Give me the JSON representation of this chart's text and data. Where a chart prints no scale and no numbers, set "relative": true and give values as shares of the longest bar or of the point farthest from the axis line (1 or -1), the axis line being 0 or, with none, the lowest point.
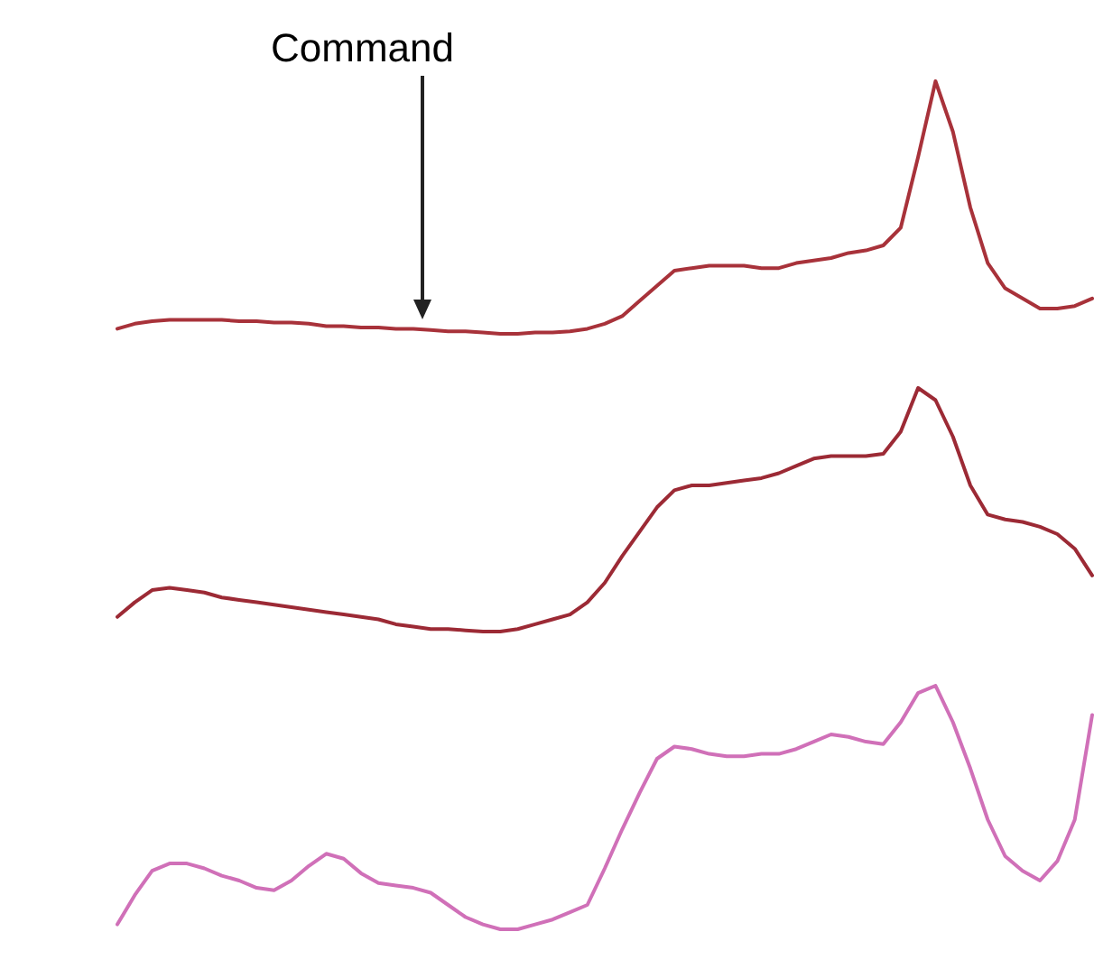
{
  "chart_data": [
    {
      "type": "line",
      "relative": true,
      "tick_labels": false,
      "marker": "none",
      "line_style": "solid",
      "annotations": [
        "Command"
      ],
      "categories": [
        null,
        null,
        null,
        null,
        null,
        null,
        null,
        null,
        null,
        null,
        null,
        null,
        null,
        null,
        null,
        null,
        null,
        null,
        null,
        null,
        null,
        null,
        null,
        null,
        null,
        null,
        null,
        null,
        null,
        null,
        null,
        null,
        null,
        null,
        null,
        null,
        null,
        null,
        null,
        null,
        null,
        null,
        null,
        null,
        null,
        null,
        null,
        null,
        null,
        null,
        null,
        null,
        null,
        null,
        null,
        null,
        null
      ],
      "series": [
        {
          "color": "#a8323a",
          "values": [
            0.02,
            0.04,
            0.05,
            0.055,
            0.055,
            0.055,
            0.055,
            0.05,
            0.05,
            0.045,
            0.045,
            0.04,
            0.03,
            0.03,
            0.025,
            0.025,
            0.02,
            0.02,
            0.015,
            0.01,
            0.01,
            0.005,
            0,
            0,
            0.005,
            0.005,
            0.01,
            0.02,
            0.04,
            0.07,
            0.13,
            0.19,
            0.25,
            0.26,
            0.27,
            0.27,
            0.27,
            0.26,
            0.26,
            0.28,
            0.29,
            0.3,
            0.32,
            0.33,
            0.35,
            0.42,
            0.7,
            1,
            0.8,
            0.5,
            0.28,
            0.18,
            0.14,
            0.1,
            0.1,
            0.11,
            0.14
          ]
        }
      ]
    },
    {
      "type": "line",
      "relative": true,
      "tick_labels": false,
      "marker": "none",
      "line_style": "solid",
      "categories": [
        null,
        null,
        null,
        null,
        null,
        null,
        null,
        null,
        null,
        null,
        null,
        null,
        null,
        null,
        null,
        null,
        null,
        null,
        null,
        null,
        null,
        null,
        null,
        null,
        null,
        null,
        null,
        null,
        null,
        null,
        null,
        null,
        null,
        null,
        null,
        null,
        null,
        null,
        null,
        null,
        null,
        null,
        null,
        null,
        null,
        null,
        null,
        null,
        null,
        null,
        null,
        null,
        null,
        null,
        null,
        null,
        null
      ],
      "series": [
        {
          "color": "#9c2a35",
          "values": [
            0.06,
            0.12,
            0.17,
            0.18,
            0.17,
            0.16,
            0.14,
            0.13,
            0.12,
            0.11,
            0.1,
            0.09,
            0.08,
            0.07,
            0.06,
            0.05,
            0.03,
            0.02,
            0.01,
            0.01,
            0.005,
            0,
            0,
            0.01,
            0.03,
            0.05,
            0.07,
            0.12,
            0.2,
            0.31,
            0.41,
            0.51,
            0.58,
            0.6,
            0.6,
            0.61,
            0.62,
            0.63,
            0.65,
            0.68,
            0.71,
            0.72,
            0.72,
            0.72,
            0.73,
            0.82,
            1,
            0.95,
            0.8,
            0.6,
            0.48,
            0.46,
            0.45,
            0.43,
            0.4,
            0.34,
            0.23
          ]
        }
      ]
    },
    {
      "type": "line",
      "relative": true,
      "tick_labels": false,
      "marker": "none",
      "line_style": "solid",
      "categories": [
        null,
        null,
        null,
        null,
        null,
        null,
        null,
        null,
        null,
        null,
        null,
        null,
        null,
        null,
        null,
        null,
        null,
        null,
        null,
        null,
        null,
        null,
        null,
        null,
        null,
        null,
        null,
        null,
        null,
        null,
        null,
        null,
        null,
        null,
        null,
        null,
        null,
        null,
        null,
        null,
        null,
        null,
        null,
        null,
        null,
        null,
        null,
        null,
        null,
        null,
        null,
        null,
        null,
        null,
        null,
        null,
        null
      ],
      "series": [
        {
          "color": "#d070b8",
          "values": [
            0.02,
            0.14,
            0.24,
            0.27,
            0.27,
            0.25,
            0.22,
            0.2,
            0.17,
            0.16,
            0.2,
            0.26,
            0.31,
            0.29,
            0.23,
            0.19,
            0.18,
            0.17,
            0.15,
            0.1,
            0.05,
            0.02,
            0,
            0,
            0.02,
            0.04,
            0.07,
            0.1,
            0.25,
            0.41,
            0.56,
            0.7,
            0.75,
            0.74,
            0.72,
            0.71,
            0.71,
            0.72,
            0.72,
            0.74,
            0.77,
            0.8,
            0.79,
            0.77,
            0.76,
            0.85,
            0.97,
            1,
            0.85,
            0.66,
            0.45,
            0.3,
            0.24,
            0.2,
            0.28,
            0.45,
            0.88
          ]
        }
      ]
    }
  ]
}
